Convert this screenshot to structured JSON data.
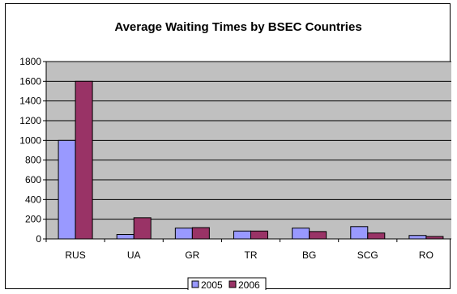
{
  "chart_data": {
    "type": "bar",
    "title": "Average Waiting Times by BSEC Countries",
    "xlabel": "",
    "ylabel": "",
    "categories": [
      "RUS",
      "UA",
      "GR",
      "TR",
      "BG",
      "SCG",
      "RO"
    ],
    "series": [
      {
        "name": "2005",
        "color": "#9999ff",
        "values": [
          1000,
          45,
          110,
          80,
          110,
          125,
          35
        ]
      },
      {
        "name": "2006",
        "color": "#993366",
        "values": [
          1600,
          215,
          115,
          80,
          75,
          60,
          25
        ]
      }
    ],
    "ylim": [
      0,
      1800
    ],
    "yticks": [
      "0",
      "200",
      "400",
      "600",
      "800",
      "1000",
      "1200",
      "1400",
      "1600",
      "1800"
    ],
    "grid": true,
    "plot_background": "#c0c0c0",
    "legend_position": "bottom"
  }
}
